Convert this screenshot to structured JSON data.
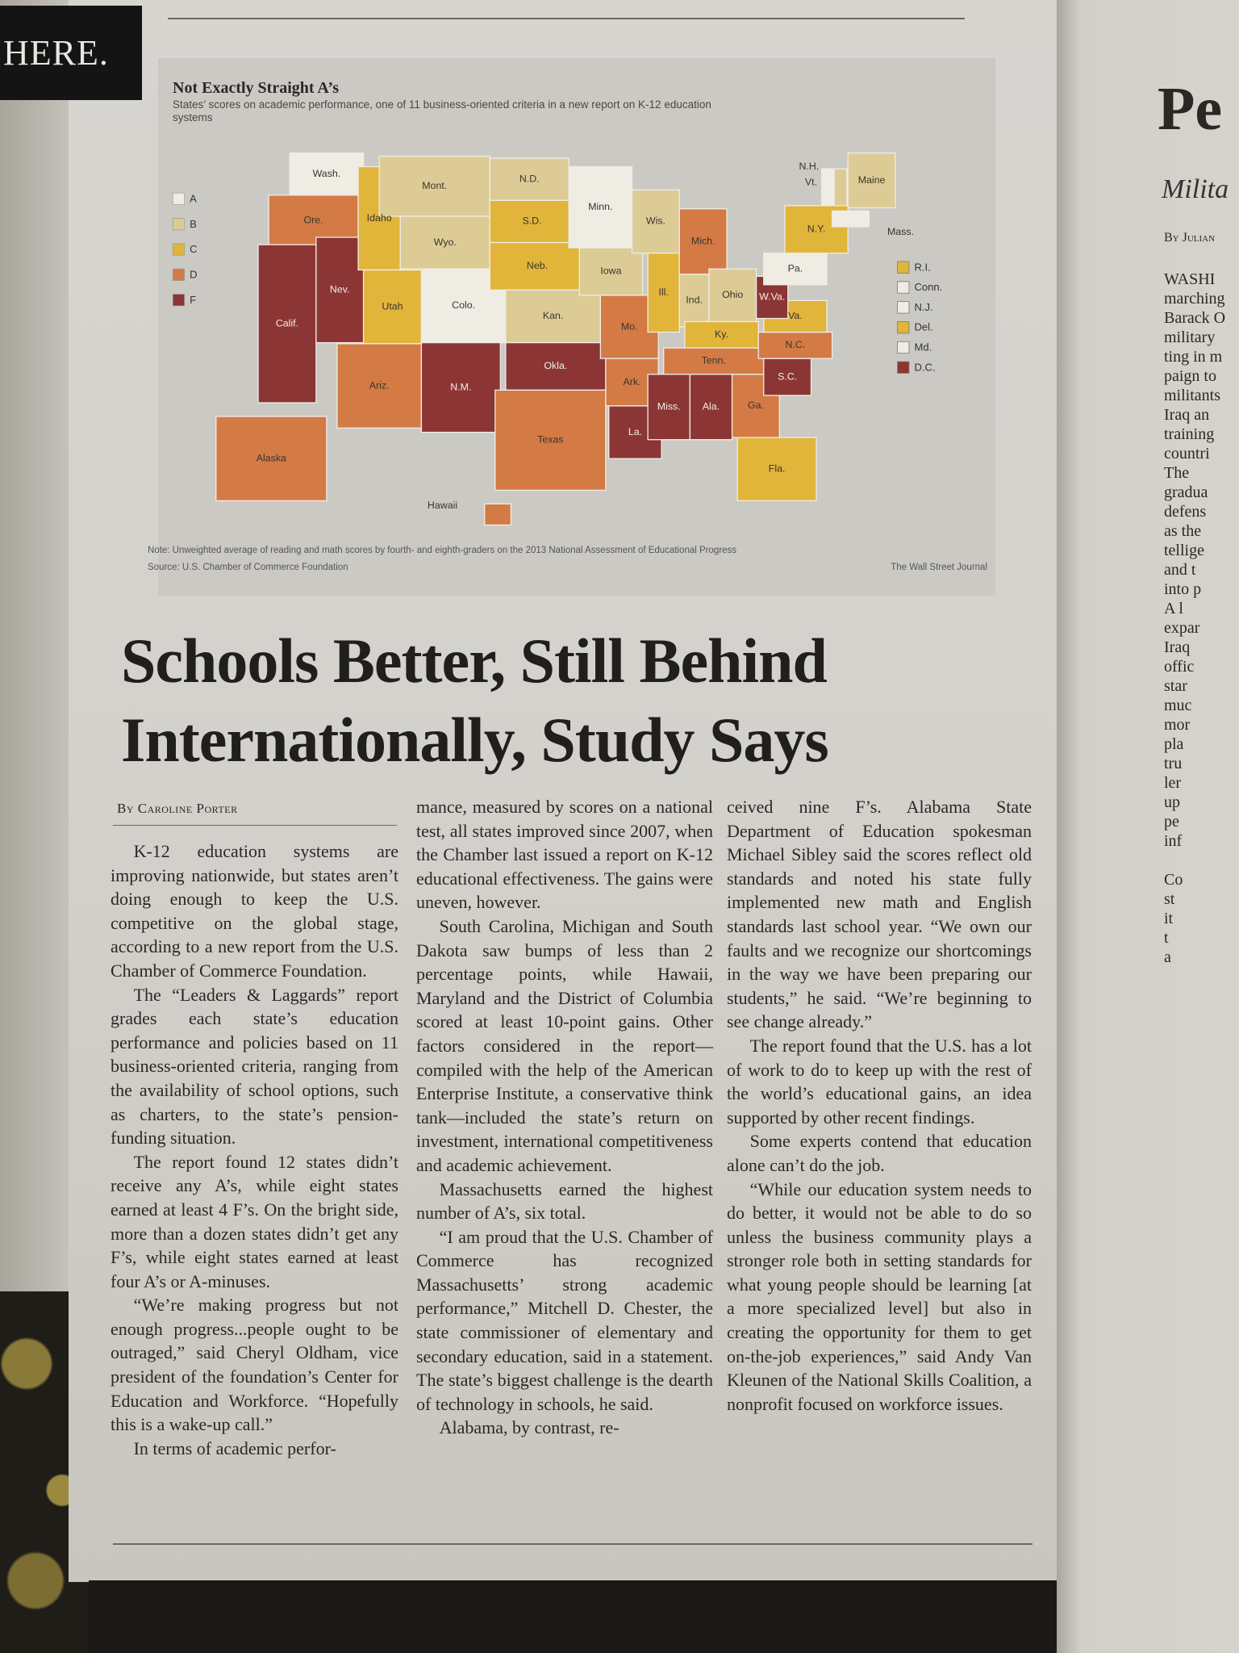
{
  "corner_tab": "HERE.",
  "map": {
    "title": "Not Exactly Straight A’s",
    "subtitle": "States’ scores on academic performance, one of 11 business-oriented criteria in a new report on K-12 education systems",
    "legend": [
      {
        "grade": "A",
        "color": "#efece4"
      },
      {
        "grade": "B",
        "color": "#dccb95"
      },
      {
        "grade": "C",
        "color": "#e1b53a"
      },
      {
        "grade": "D",
        "color": "#d37a45"
      },
      {
        "grade": "F",
        "color": "#8c3535"
      }
    ],
    "states": [
      {
        "label": "Wash.",
        "grade": "A"
      },
      {
        "label": "Ore.",
        "grade": "D"
      },
      {
        "label": "Calif.",
        "grade": "F"
      },
      {
        "label": "Nev.",
        "grade": "F"
      },
      {
        "label": "Idaho",
        "grade": "C"
      },
      {
        "label": "Mont.",
        "grade": "B"
      },
      {
        "label": "Wyo.",
        "grade": "B"
      },
      {
        "label": "Utah",
        "grade": "C"
      },
      {
        "label": "Colo.",
        "grade": "A"
      },
      {
        "label": "Ariz.",
        "grade": "D"
      },
      {
        "label": "N.M.",
        "grade": "F"
      },
      {
        "label": "N.D.",
        "grade": "B"
      },
      {
        "label": "S.D.",
        "grade": "C"
      },
      {
        "label": "Neb.",
        "grade": "C"
      },
      {
        "label": "Kan.",
        "grade": "B"
      },
      {
        "label": "Okla.",
        "grade": "F"
      },
      {
        "label": "Texas",
        "grade": "D"
      },
      {
        "label": "Minn.",
        "grade": "A"
      },
      {
        "label": "Iowa",
        "grade": "B"
      },
      {
        "label": "Mo.",
        "grade": "D"
      },
      {
        "label": "Ark.",
        "grade": "D"
      },
      {
        "label": "La.",
        "grade": "F"
      },
      {
        "label": "Wis.",
        "grade": "B"
      },
      {
        "label": "Ill.",
        "grade": "C"
      },
      {
        "label": "Mich.",
        "grade": "D"
      },
      {
        "label": "Ind.",
        "grade": "B"
      },
      {
        "label": "Ohio",
        "grade": "B"
      },
      {
        "label": "Ky.",
        "grade": "C"
      },
      {
        "label": "Tenn.",
        "grade": "D"
      },
      {
        "label": "Miss.",
        "grade": "F"
      },
      {
        "label": "Ala.",
        "grade": "F"
      },
      {
        "label": "Ga.",
        "grade": "D"
      },
      {
        "label": "Fla.",
        "grade": "C"
      },
      {
        "label": "S.C.",
        "grade": "F"
      },
      {
        "label": "N.C.",
        "grade": "D"
      },
      {
        "label": "Va.",
        "grade": "C"
      },
      {
        "label": "W.Va.",
        "grade": "F"
      },
      {
        "label": "Pa.",
        "grade": "A"
      },
      {
        "label": "N.Y.",
        "grade": "C"
      },
      {
        "label": "Vt.",
        "grade": "A"
      },
      {
        "label": "N.H.",
        "grade": "B"
      },
      {
        "label": "Maine",
        "grade": "B"
      },
      {
        "label": "Mass.",
        "grade": "A"
      },
      {
        "label": "Alaska",
        "grade": "D"
      },
      {
        "label": "Hawaii",
        "grade": "D"
      }
    ],
    "small_states": [
      {
        "label": "R.I.",
        "grade": "C"
      },
      {
        "label": "Conn.",
        "grade": "A"
      },
      {
        "label": "N.J.",
        "grade": "A"
      },
      {
        "label": "Del.",
        "grade": "C"
      },
      {
        "label": "Md.",
        "grade": "A"
      },
      {
        "label": "D.C.",
        "grade": "F"
      }
    ],
    "note": "Note: Unweighted average of reading and math scores by fourth- and eighth-graders on the 2013 National Assessment of Educational Progress",
    "source": "Source: U.S. Chamber of Commerce Foundation",
    "credit": "The Wall Street Journal"
  },
  "article": {
    "headline": [
      "Schools Better, Still Behind",
      "Internationally, Study Says"
    ],
    "byline": "By Caroline Porter",
    "columns": [
      {
        "paragraphs": [
          "K-12 education systems are improving nationwide, but states aren’t doing enough to keep the U.S. competitive on the global stage, according to a new report from the U.S. Chamber of Commerce Foundation.",
          "The “Leaders & Laggards” report grades each state’s education performance and policies based on 11 business-oriented criteria, ranging from the availability of school options, such as charters, to the state’s pension-funding situation.",
          "The report found 12 states didn’t receive any A’s, while eight states earned at least 4 F’s. On the bright side, more than a dozen states didn’t get any F’s, while eight states earned at least four A’s or A-minuses.",
          "“We’re making progress but not enough progress...people ought to be outraged,” said Cheryl Oldham, vice president of the foundation’s Center for Education and Workforce. “Hopefully this is a wake-up call.”",
          "In terms of academic perfor-"
        ]
      },
      {
        "paragraphs": [
          "mance, measured by scores on a national test, all states improved since 2007, when the Chamber last issued a report on K-12 educational effectiveness. The gains were uneven, however.",
          "South Carolina, Michigan and South Dakota saw bumps of less than 2 percentage points, while Hawaii, Maryland and the District of Columbia scored at least 10-point gains. Other factors considered in the report—compiled with the help of the American Enterprise Institute, a conservative think tank—included the state’s return on investment, international competitiveness and academic achievement.",
          "Massachusetts earned the highest number of A’s, six total.",
          "“I am proud that the U.S. Chamber of Commerce has recognized Massachusetts’ strong academic performance,” Mitchell D. Chester, the state commissioner of elementary and secondary education, said in a statement. The state’s biggest challenge is the dearth of technology in schools, he said.",
          "Alabama, by contrast, re-"
        ]
      },
      {
        "paragraphs": [
          "ceived nine F’s. Alabama State Department of Education spokesman Michael Sibley said the scores reflect old standards and noted his state fully implemented new math and English standards last school year. “We own our faults and we recognize our shortcomings in the way we have been preparing our students,” he said. “We’re beginning to see change already.”",
          "The report found that the U.S. has a lot of work to do to keep up with the rest of the world’s educational gains, an idea supported by other recent findings.",
          "Some experts contend that education alone can’t do the job.",
          "“While our education system needs to do better, it would not be able to do so unless the business community plays a stronger role both in setting standards for what young people should be learning [at a more specialized level] but also in creating the opportunity for them to get on-the-job experiences,” said Andy Van Kleunen of the National Skills Coalition, a nonprofit focused on workforce issues."
        ]
      }
    ]
  },
  "right_page": {
    "heading": "Pe",
    "subheading": "Milita",
    "byline": "By Julian",
    "lines": [
      "WASHI",
      "marching",
      "Barack O",
      "military",
      "ting in m",
      "paign to",
      "militants",
      "Iraq an",
      "training",
      "countri",
      "The",
      "gradua",
      "defens",
      "as the",
      "tellige",
      "and t",
      "into p",
      "A l",
      "expar",
      "Iraq",
      "offic",
      "star",
      "muc",
      "mor",
      "pla",
      "tru",
      "ler",
      "up",
      "pe",
      "inf",
      "",
      "Co",
      "st",
      "it",
      "t",
      "a"
    ]
  }
}
